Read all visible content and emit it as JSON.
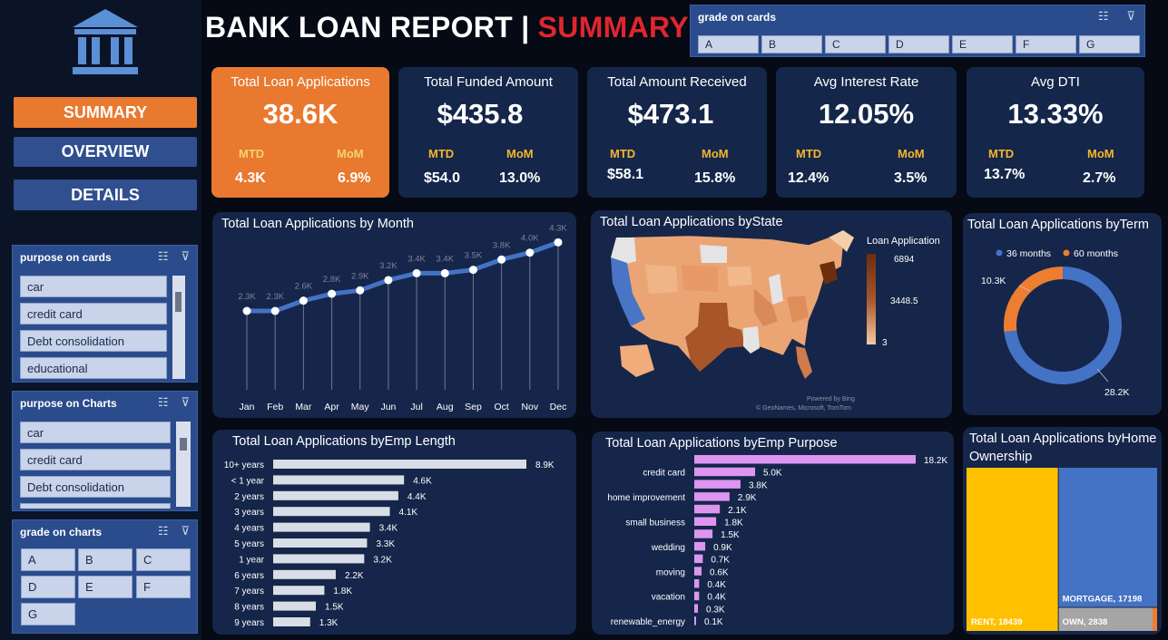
{
  "header": {
    "title_main": "BANK LOAN REPORT | ",
    "title_accent": "SUMMARY"
  },
  "nav": {
    "summary": "SUMMARY",
    "overview": "OVERVIEW",
    "details": "DETAILS"
  },
  "slicers": {
    "grade_on_cards": {
      "title": "grade on cards",
      "items": [
        "A",
        "B",
        "C",
        "D",
        "E",
        "F",
        "G"
      ]
    },
    "purpose_on_cards": {
      "title": "purpose on cards",
      "items": [
        "car",
        "credit card",
        "Debt consolidation",
        "educational"
      ]
    },
    "purpose_on_charts": {
      "title": "purpose on Charts",
      "items": [
        "car",
        "credit card",
        "Debt consolidation"
      ]
    },
    "grade_on_charts": {
      "title": "grade on charts",
      "items": [
        "A",
        "B",
        "C",
        "D",
        "E",
        "F",
        "G"
      ]
    }
  },
  "kpis": [
    {
      "label": "Total Loan Applications",
      "value": "38.6K",
      "mtd_label": "MTD",
      "mom_label": "MoM",
      "mtd": "4.3K",
      "mom": "6.9%"
    },
    {
      "label": "Total Funded Amount",
      "value": "$435.8",
      "mtd_label": "MTD",
      "mom_label": "MoM",
      "mtd": "$54.0",
      "mom": "13.0%"
    },
    {
      "label": "Total Amount Received",
      "value": "$473.1",
      "mtd_label": "MTD",
      "mom_label": "MoM",
      "mtd": "$58.1",
      "mom": "15.8%"
    },
    {
      "label": "Avg Interest Rate",
      "value": "12.05%",
      "mtd_label": "MTD",
      "mom_label": "MoM",
      "mtd": "12.4%",
      "mom": "3.5%"
    },
    {
      "label": "Avg DTI",
      "value": "13.33%",
      "mtd_label": "MTD",
      "mom_label": "MoM",
      "mtd": "13.7%",
      "mom": "2.7%"
    }
  ],
  "colors": {
    "accent_orange": "#e8792f",
    "card_navy": "#14264a",
    "line_blue": "#4472c4",
    "bar_grey": "#d9dde6",
    "bar_violet": "#dd96f0",
    "rent_yellow": "#ffc000",
    "mortgage_blue": "#4472c4",
    "own_grey": "#a5a5a5",
    "map_high": "#8b3a12",
    "map_low": "#f2c8a0"
  },
  "chart_data": [
    {
      "id": "by_month",
      "type": "line",
      "title": "Total Loan Applications by Month",
      "categories": [
        "Jan",
        "Feb",
        "Mar",
        "Apr",
        "May",
        "Jun",
        "Jul",
        "Aug",
        "Sep",
        "Oct",
        "Nov",
        "Dec"
      ],
      "values": [
        2.3,
        2.3,
        2.6,
        2.8,
        2.9,
        3.2,
        3.4,
        3.4,
        3.5,
        3.8,
        4.0,
        4.3
      ],
      "labels": [
        "2.3K",
        "2.3K",
        "2.6K",
        "2.8K",
        "2.9K",
        "3.2K",
        "3.4K",
        "3.4K",
        "3.5K",
        "3.8K",
        "4.0K",
        "4.3K"
      ],
      "ylim": [
        0,
        4.6
      ]
    },
    {
      "id": "by_state",
      "type": "heatmap",
      "title": "Total Loan Applications byState",
      "legend_title": "Loan Application",
      "legend_ticks": [
        "6894",
        "3448.5",
        "3"
      ],
      "attribution_1": "Powered by Bing",
      "attribution_2": "© GeoNames, Microsoft, TomTom"
    },
    {
      "id": "by_term",
      "type": "pie",
      "title": "Total Loan Applications byTerm",
      "series": [
        {
          "name": "36 months",
          "value": 28.2,
          "label": "28.2K",
          "color": "#4472c4"
        },
        {
          "name": "60 months",
          "value": 10.3,
          "label": "10.3K",
          "color": "#ed7d31"
        }
      ]
    },
    {
      "id": "by_emp_length",
      "type": "bar",
      "title": "Total Loan Applications byEmp Length",
      "categories": [
        "10+ years",
        "< 1 year",
        "2 years",
        "3 years",
        "4 years",
        "5 years",
        "1 year",
        "6 years",
        "7 years",
        "8 years",
        "9 years"
      ],
      "values": [
        8.9,
        4.6,
        4.4,
        4.1,
        3.4,
        3.3,
        3.2,
        2.2,
        1.8,
        1.5,
        1.3
      ],
      "labels": [
        "8.9K",
        "4.6K",
        "4.4K",
        "4.1K",
        "3.4K",
        "3.3K",
        "3.2K",
        "2.2K",
        "1.8K",
        "1.5K",
        "1.3K"
      ],
      "xlim": [
        0,
        8.9
      ]
    },
    {
      "id": "by_purpose",
      "type": "bar",
      "title": "Total Loan Applications byEmp Purpose",
      "categories": [
        "",
        "credit card",
        "",
        "home improvement",
        "",
        "small business",
        "",
        "wedding",
        "",
        "moving",
        "",
        "vacation",
        "",
        "renewable_energy"
      ],
      "values": [
        18.2,
        5.0,
        3.8,
        2.9,
        2.1,
        1.8,
        1.5,
        0.9,
        0.7,
        0.6,
        0.4,
        0.4,
        0.3,
        0.1
      ],
      "labels": [
        "18.2K",
        "5.0K",
        "3.8K",
        "2.9K",
        "2.1K",
        "1.8K",
        "1.5K",
        "0.9K",
        "0.7K",
        "0.6K",
        "0.4K",
        "0.4K",
        "0.3K",
        "0.1K"
      ],
      "xlim": [
        0,
        18.2
      ]
    },
    {
      "id": "by_home_ownership",
      "type": "treemap",
      "title": "Total Loan Applications byHome Ownership",
      "series": [
        {
          "name": "RENT",
          "value": 18439,
          "label": "RENT, 18439"
        },
        {
          "name": "MORTGAGE",
          "value": 17198,
          "label": "MORTGAGE, 17198"
        },
        {
          "name": "OWN",
          "value": 2838,
          "label": "OWN, 2838"
        }
      ]
    }
  ]
}
